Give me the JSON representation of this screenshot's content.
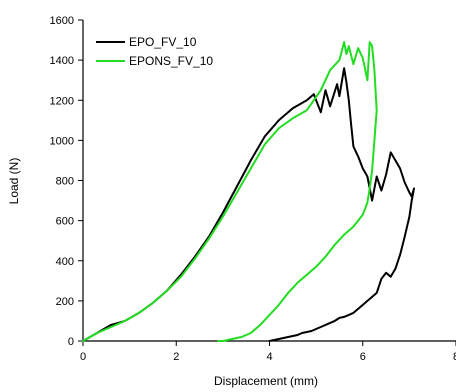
{
  "chart_data": {
    "type": "line",
    "title": "",
    "xlabel": "Displacement (mm)",
    "ylabel": "Load (N)",
    "xlim": [
      0,
      8
    ],
    "ylim": [
      0,
      1600
    ],
    "xticks": [
      0,
      2,
      4,
      6,
      8
    ],
    "xtick_labels": [
      "0",
      "2",
      "4",
      "6",
      "8"
    ],
    "yticks": [
      0,
      200,
      400,
      600,
      800,
      1000,
      1200,
      1400,
      1600
    ],
    "ytick_labels": [
      "0",
      "200",
      "400",
      "600",
      "800",
      "1000",
      "1200",
      "1400",
      "1600"
    ],
    "grid": false,
    "legend_position": "top-left",
    "series": [
      {
        "name": "EPO_FV_10",
        "color": "#000000",
        "x": [
          0.0,
          0.3,
          0.6,
          0.9,
          1.2,
          1.5,
          1.8,
          2.1,
          2.4,
          2.7,
          3.0,
          3.3,
          3.6,
          3.9,
          4.2,
          4.5,
          4.8,
          4.95,
          5.1,
          5.2,
          5.3,
          5.45,
          5.5,
          5.6,
          5.65,
          5.7,
          5.75,
          5.8,
          5.9,
          6.0,
          6.1,
          6.2,
          6.3,
          6.4,
          6.5,
          6.6,
          6.7,
          6.8,
          6.9,
          7.0,
          7.05,
          7.1,
          7.05,
          7.0,
          6.9,
          6.8,
          6.7,
          6.6,
          6.5,
          6.4,
          6.3,
          6.2,
          6.1,
          6.0,
          5.9,
          5.8,
          5.7,
          5.6,
          5.5,
          5.4,
          5.3,
          5.2,
          5.1,
          5.0,
          4.9,
          4.8,
          4.7,
          4.6,
          4.5,
          4.4,
          4.3,
          4.2,
          4.1,
          4.0
        ],
        "y": [
          0,
          40,
          80,
          100,
          140,
          190,
          250,
          330,
          420,
          520,
          640,
          770,
          900,
          1020,
          1100,
          1160,
          1200,
          1230,
          1140,
          1250,
          1170,
          1280,
          1220,
          1360,
          1290,
          1200,
          1080,
          970,
          920,
          860,
          820,
          700,
          820,
          750,
          830,
          940,
          900,
          860,
          790,
          740,
          720,
          760,
          700,
          620,
          520,
          430,
          360,
          320,
          340,
          310,
          240,
          220,
          200,
          180,
          160,
          140,
          130,
          120,
          115,
          100,
          90,
          80,
          70,
          60,
          50,
          45,
          40,
          30,
          25,
          20,
          15,
          10,
          5,
          0
        ]
      },
      {
        "name": "EPONS_FV_10",
        "color": "#22dd22",
        "x": [
          0.0,
          0.3,
          0.6,
          0.9,
          1.2,
          1.5,
          1.8,
          2.1,
          2.4,
          2.7,
          3.0,
          3.3,
          3.6,
          3.9,
          4.2,
          4.5,
          4.8,
          5.1,
          5.3,
          5.5,
          5.6,
          5.65,
          5.7,
          5.8,
          5.9,
          6.0,
          6.1,
          6.15,
          6.2,
          6.25,
          6.3,
          6.25,
          6.2,
          6.15,
          6.1,
          6.0,
          5.9,
          5.8,
          5.6,
          5.4,
          5.2,
          5.0,
          4.8,
          4.6,
          4.4,
          4.2,
          4.0,
          3.8,
          3.6,
          3.4,
          3.2,
          3.0,
          2.9
        ],
        "y": [
          0,
          40,
          70,
          100,
          140,
          190,
          250,
          320,
          410,
          510,
          620,
          740,
          860,
          980,
          1060,
          1110,
          1150,
          1250,
          1350,
          1400,
          1490,
          1430,
          1470,
          1380,
          1460,
          1410,
          1300,
          1490,
          1470,
          1350,
          1150,
          1000,
          850,
          760,
          690,
          630,
          600,
          570,
          530,
          480,
          420,
          370,
          330,
          290,
          240,
          180,
          130,
          80,
          40,
          20,
          10,
          0,
          0
        ]
      }
    ]
  }
}
